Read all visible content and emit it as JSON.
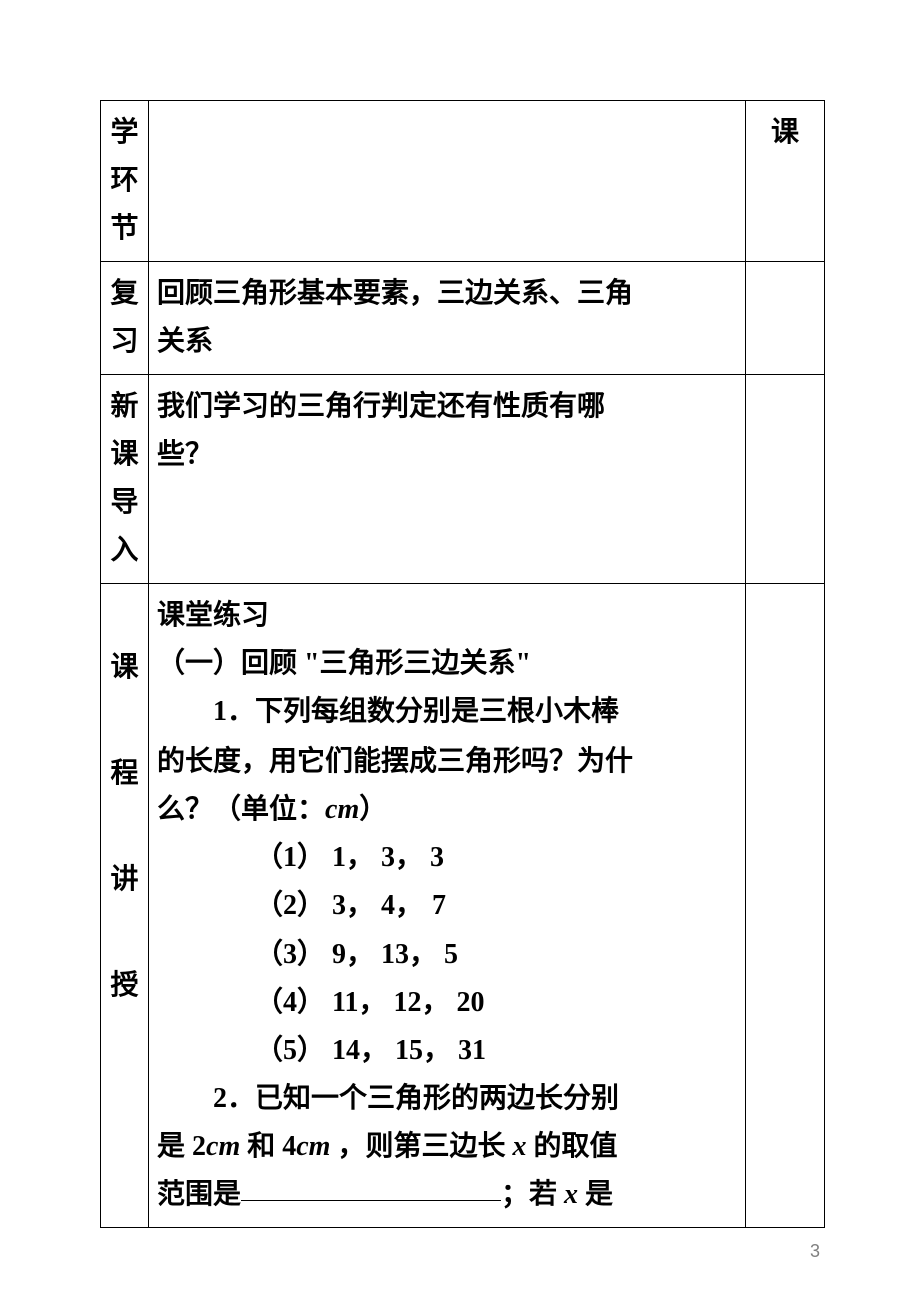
{
  "page_number": "3",
  "rows": {
    "row1": {
      "left": [
        "学",
        "环",
        "节"
      ],
      "middle": "",
      "right": [
        "课"
      ]
    },
    "row2": {
      "left": [
        "复",
        "习"
      ],
      "middle_lines": [
        "回顾三角形基本要素，三边关系、三角",
        "关系"
      ],
      "right": ""
    },
    "row3": {
      "left": [
        "新",
        "课",
        "导",
        "入"
      ],
      "middle_lines": [
        "",
        "我们学习的三角行判定还有性质有哪",
        "些？"
      ],
      "right": ""
    },
    "row4": {
      "left": [
        "课",
        "程",
        "讲",
        "授"
      ],
      "right": "",
      "section_title": "课堂练习",
      "subsection": "（一）回顾 \"三角形三边关系\"",
      "q1_intro_line1": "1．下列每组数分别是三根小木棒",
      "q1_intro_line2": "的长度，用它们能摆成三角形吗？为什",
      "q1_intro_line3_prefix": "么？（单位：",
      "q1_intro_line3_unit": "cm",
      "q1_intro_line3_suffix": "）",
      "q1_items": [
        "（1） 1， 3， 3",
        "（2） 3， 4， 7",
        "（3） 9， 13， 5",
        "（4） 11， 12， 20",
        "（5） 14， 15， 31"
      ],
      "q2_line1_prefix": "2．已知一个三角形的两边长分别",
      "q2_line2_p1": "是 2",
      "q2_line2_cm1": "cm",
      "q2_line2_p2": " 和 4",
      "q2_line2_cm2": "cm",
      "q2_line2_p3": " ，则第三边长 ",
      "q2_line2_x": "x",
      "q2_line2_p4": " 的取值",
      "q2_line3_p1": "范围是",
      "q2_line3_p2": "；若 ",
      "q2_line3_x": "x",
      "q2_line3_p3": " 是"
    }
  },
  "colors": {
    "text": "#000000",
    "background": "#ffffff",
    "border": "#000000",
    "page_num": "#808080"
  }
}
